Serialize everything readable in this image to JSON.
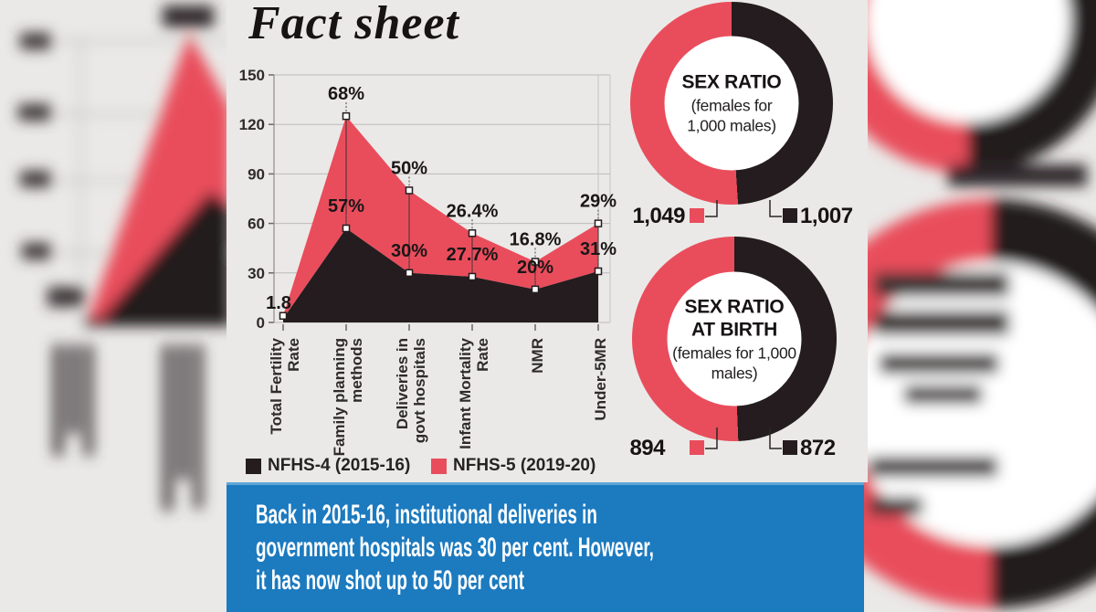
{
  "title": "Fact sheet",
  "colors": {
    "background": "#eae9e7",
    "nfhs4_black": "#241c1e",
    "nfhs5_red": "#e94d5c",
    "banner_blue": "#1c7abf",
    "gridline": "#bdbab8",
    "text_dark": "#171314"
  },
  "chart_data": [
    {
      "type": "area",
      "stacked": true,
      "categories": [
        "Total Fertility Rate",
        "Family planning methods",
        "Deliveries in govt hospitals",
        "Infant Mortality Rate",
        "NMR",
        "Under-5MR"
      ],
      "category_lines": [
        [
          "Total Fertility",
          "Rate"
        ],
        [
          "Family planning",
          "methods"
        ],
        [
          "Deliveries in",
          "govt hospitals"
        ],
        [
          "Infant Mortality",
          "Rate"
        ],
        [
          "NMR"
        ],
        [
          "Under-5MR"
        ]
      ],
      "y_ticks": [
        0,
        30,
        60,
        90,
        120,
        150
      ],
      "ylim": [
        0,
        150
      ],
      "grid": true,
      "legend_position": "bottom",
      "series": [
        {
          "name": "NFHS-4 (2015-16)",
          "color": "#241c1e",
          "values": [
            2.2,
            57,
            30,
            27.7,
            20,
            31
          ],
          "point_labels": [
            "",
            "57%",
            "30%",
            "27.7%",
            "20%",
            "31%"
          ]
        },
        {
          "name": "NFHS-5 (2019-20)",
          "color": "#e94d5c",
          "values": [
            1.8,
            68,
            50,
            26.4,
            16.8,
            29
          ],
          "point_labels": [
            "1.8",
            "68%",
            "50%",
            "26.4%",
            "16.8%",
            "29%"
          ]
        }
      ]
    },
    {
      "type": "donut",
      "title_lines": [
        "SEX RATIO"
      ],
      "subtitle_lines": [
        "(females for",
        "1,000 males)"
      ],
      "segments": [
        {
          "label": "1,049",
          "value": 1049,
          "color": "#e94d5c",
          "side": "left"
        },
        {
          "label": "1,007",
          "value": 1007,
          "color": "#241c1e",
          "side": "right"
        }
      ]
    },
    {
      "type": "donut",
      "title_lines": [
        "SEX RATIO",
        "AT BIRTH"
      ],
      "subtitle_lines": [
        "(females for 1,000",
        "males)"
      ],
      "segments": [
        {
          "label": "894",
          "value": 894,
          "color": "#e94d5c",
          "side": "left"
        },
        {
          "label": "872",
          "value": 872,
          "color": "#241c1e",
          "side": "right"
        }
      ]
    }
  ],
  "banner": {
    "lines": [
      "Back in 2015-16, institutional deliveries in",
      "government hospitals was 30 per cent. However,",
      "it has now shot up to 50 per cent"
    ]
  }
}
